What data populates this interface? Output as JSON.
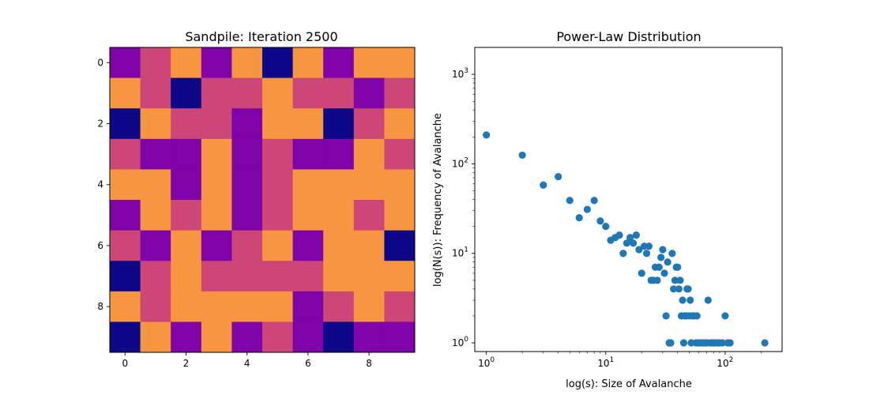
{
  "chart_data": [
    {
      "type": "heatmap",
      "title": "Sandpile: Iteration 2500",
      "colormap": "plasma",
      "levels": [
        0,
        1,
        2,
        3
      ],
      "level_colors": [
        "#0d0887",
        "#7e03a8",
        "#cc4778",
        "#f89540"
      ],
      "xticks": [
        "0",
        "2",
        "4",
        "6",
        "8"
      ],
      "yticks": [
        "0",
        "2",
        "4",
        "6",
        "8"
      ],
      "grid": [
        [
          1,
          2,
          3,
          1,
          3,
          0,
          3,
          1,
          3,
          3
        ],
        [
          3,
          2,
          0,
          2,
          2,
          3,
          2,
          2,
          1,
          2
        ],
        [
          0,
          3,
          2,
          2,
          1,
          3,
          3,
          0,
          2,
          3
        ],
        [
          2,
          1,
          1,
          3,
          1,
          2,
          1,
          1,
          3,
          2
        ],
        [
          3,
          3,
          1,
          3,
          1,
          2,
          3,
          3,
          3,
          3
        ],
        [
          1,
          3,
          2,
          3,
          1,
          2,
          3,
          3,
          2,
          3
        ],
        [
          2,
          1,
          3,
          1,
          2,
          3,
          1,
          3,
          3,
          0
        ],
        [
          0,
          2,
          3,
          2,
          2,
          2,
          2,
          3,
          3,
          3
        ],
        [
          3,
          2,
          3,
          3,
          3,
          3,
          1,
          2,
          3,
          2
        ],
        [
          0,
          3,
          1,
          3,
          1,
          2,
          1,
          0,
          1,
          1
        ]
      ]
    },
    {
      "type": "scatter",
      "title": "Power-Law Distribution",
      "xlabel": "log(s): Size of Avalanche",
      "ylabel": "log(N(s)): Frequency of Avalanche",
      "xscale": "log",
      "yscale": "log",
      "xlim": [
        0.8,
        300
      ],
      "ylim": [
        0.8,
        2000
      ],
      "xtick_labels": [
        {
          "base": "10",
          "exp": "0"
        },
        {
          "base": "10",
          "exp": "1"
        },
        {
          "base": "10",
          "exp": "2"
        }
      ],
      "ytick_labels": [
        {
          "base": "10",
          "exp": "0"
        },
        {
          "base": "10",
          "exp": "1"
        },
        {
          "base": "10",
          "exp": "2"
        },
        {
          "base": "10",
          "exp": "3"
        }
      ],
      "marker_color": "#1f77b4",
      "points": [
        [
          1,
          210
        ],
        [
          2,
          125
        ],
        [
          3,
          58
        ],
        [
          4,
          72
        ],
        [
          5,
          39
        ],
        [
          6,
          25
        ],
        [
          7,
          31
        ],
        [
          8,
          39
        ],
        [
          9,
          23
        ],
        [
          10,
          20
        ],
        [
          11,
          14
        ],
        [
          12,
          15
        ],
        [
          13,
          16
        ],
        [
          14,
          10
        ],
        [
          15,
          13
        ],
        [
          16,
          15
        ],
        [
          17,
          13
        ],
        [
          18,
          16
        ],
        [
          19,
          11
        ],
        [
          20,
          6
        ],
        [
          21,
          12
        ],
        [
          22,
          10
        ],
        [
          23,
          12
        ],
        [
          24,
          5
        ],
        [
          25,
          5
        ],
        [
          26,
          7
        ],
        [
          27,
          5
        ],
        [
          28,
          7
        ],
        [
          29,
          9
        ],
        [
          30,
          11
        ],
        [
          31,
          6
        ],
        [
          32,
          2
        ],
        [
          33,
          8
        ],
        [
          34,
          1
        ],
        [
          35,
          1
        ],
        [
          36,
          10
        ],
        [
          37,
          4
        ],
        [
          38,
          5
        ],
        [
          39,
          7
        ],
        [
          40,
          7
        ],
        [
          41,
          4
        ],
        [
          42,
          5
        ],
        [
          43,
          2
        ],
        [
          44,
          3
        ],
        [
          45,
          1
        ],
        [
          46,
          2
        ],
        [
          47,
          2
        ],
        [
          48,
          4
        ],
        [
          49,
          4
        ],
        [
          50,
          2
        ],
        [
          51,
          3
        ],
        [
          52,
          1
        ],
        [
          53,
          2
        ],
        [
          55,
          2
        ],
        [
          57,
          1
        ],
        [
          58,
          2
        ],
        [
          60,
          1
        ],
        [
          62,
          1
        ],
        [
          64,
          1
        ],
        [
          66,
          1
        ],
        [
          68,
          1
        ],
        [
          70,
          1
        ],
        [
          72,
          3
        ],
        [
          75,
          1
        ],
        [
          78,
          1
        ],
        [
          80,
          1
        ],
        [
          83,
          1
        ],
        [
          86,
          1
        ],
        [
          90,
          1
        ],
        [
          95,
          1
        ],
        [
          100,
          2
        ],
        [
          105,
          1
        ],
        [
          110,
          1
        ],
        [
          215,
          1
        ]
      ]
    }
  ]
}
